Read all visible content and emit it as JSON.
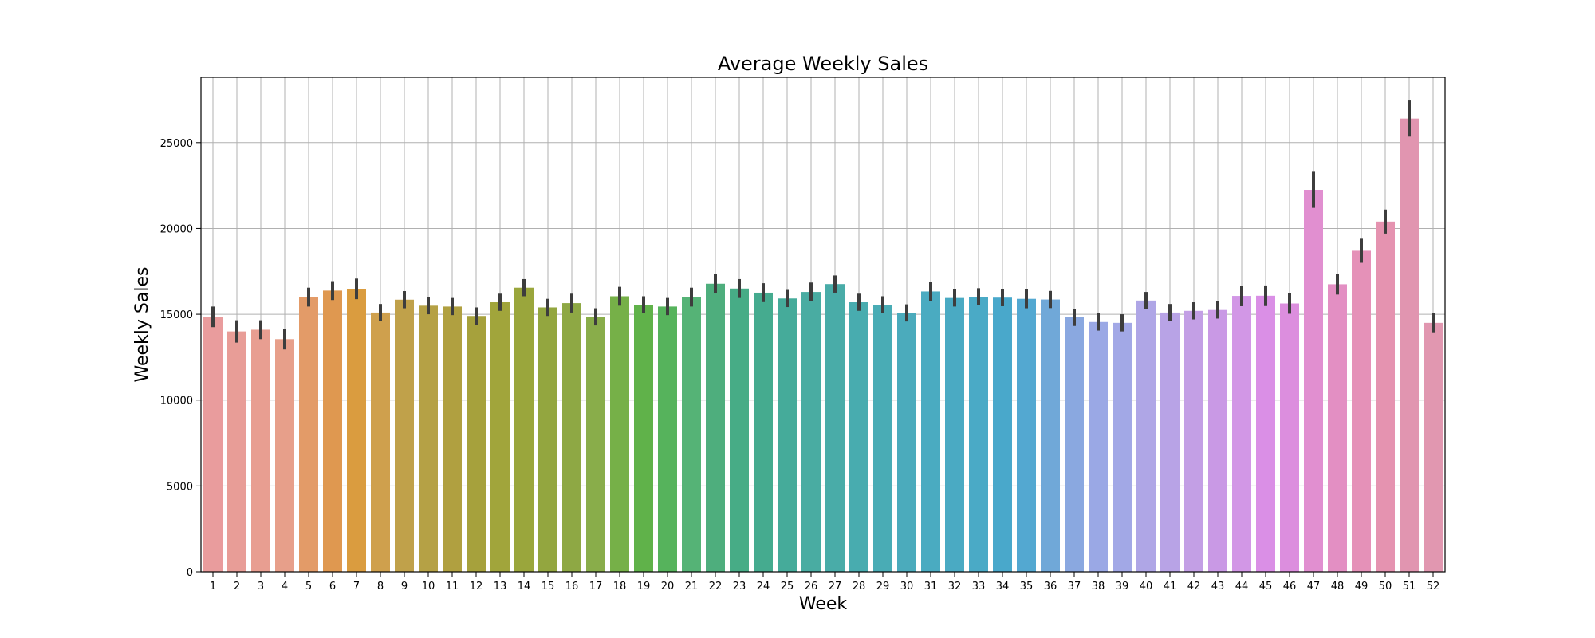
{
  "chart_data": {
    "type": "bar",
    "title": "Average Weekly Sales",
    "xlabel": "Week",
    "ylabel": "Weekly Sales",
    "ylim": [
      0,
      28800
    ],
    "yticks": [
      0,
      5000,
      10000,
      15000,
      20000,
      25000
    ],
    "ytick_labels": [
      "0",
      "5000",
      "10000",
      "15000",
      "20000",
      "25000"
    ],
    "grid": true,
    "error_bars": true,
    "categories": [
      "1",
      "2",
      "3",
      "4",
      "5",
      "6",
      "7",
      "8",
      "9",
      "10",
      "11",
      "12",
      "13",
      "14",
      "15",
      "16",
      "17",
      "18",
      "19",
      "20",
      "21",
      "22",
      "23",
      "24",
      "25",
      "26",
      "27",
      "28",
      "29",
      "30",
      "31",
      "32",
      "33",
      "34",
      "35",
      "36",
      "37",
      "38",
      "39",
      "40",
      "41",
      "42",
      "43",
      "44",
      "45",
      "46",
      "47",
      "48",
      "49",
      "50",
      "51",
      "52"
    ],
    "values": [
      14850,
      14000,
      14100,
      13550,
      16000,
      16380,
      16480,
      15100,
      15850,
      15500,
      15450,
      14900,
      15700,
      16550,
      15400,
      15650,
      14850,
      16050,
      15550,
      15450,
      16000,
      16780,
      16500,
      16260,
      15920,
      16300,
      16760,
      15700,
      15550,
      15080,
      16330,
      15950,
      16020,
      15970,
      15900,
      15860,
      14820,
      14550,
      14500,
      15800,
      15100,
      15200,
      15250,
      16070,
      16080,
      15630,
      22250,
      16750,
      18700,
      20400,
      26400,
      14500
    ],
    "errors": [
      600,
      650,
      550,
      600,
      550,
      550,
      600,
      500,
      500,
      500,
      500,
      500,
      500,
      500,
      500,
      550,
      500,
      550,
      500,
      500,
      550,
      550,
      550,
      550,
      500,
      550,
      500,
      500,
      500,
      500,
      550,
      500,
      500,
      500,
      550,
      500,
      500,
      500,
      500,
      500,
      500,
      500,
      500,
      600,
      600,
      600,
      1050,
      600,
      700,
      700,
      1050,
      550
    ],
    "colors": [
      "#e99c9d",
      "#e89d97",
      "#e89e91",
      "#e79f8a",
      "#e39b68",
      "#df9850",
      "#da9c3f",
      "#cfa04d",
      "#c0a14a",
      "#b5a145",
      "#b0a040",
      "#a6a13c",
      "#a1a53b",
      "#9aa63c",
      "#93a63f",
      "#8ea844",
      "#89ad4a",
      "#76b048",
      "#60b24a",
      "#56b35c",
      "#55b376",
      "#4eae7d",
      "#47ac86",
      "#45ab8f",
      "#45ab9a",
      "#49aca2",
      "#49aca8",
      "#48acaf",
      "#49acb5",
      "#4babbc",
      "#4aabc1",
      "#4aaac3",
      "#4aaac6",
      "#49a8cb",
      "#53a8d1",
      "#70a8d8",
      "#8aa8e0",
      "#9aa8e5",
      "#a2a8e6",
      "#afa6e6",
      "#b8a3e6",
      "#c39fe5",
      "#c999e5",
      "#d297e6",
      "#da8fe6",
      "#dc8ede",
      "#e18fd0",
      "#e38fc3",
      "#e591b8",
      "#e593b0",
      "#e195b0",
      "#e197b0"
    ]
  }
}
